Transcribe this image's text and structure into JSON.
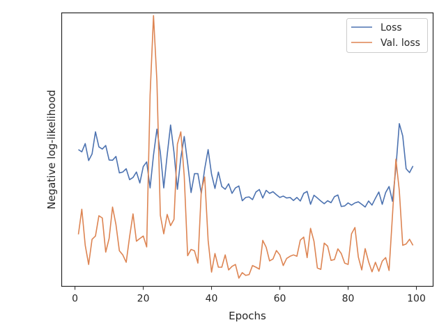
{
  "chart_data": {
    "type": "line",
    "xlabel": "Epochs",
    "ylabel": "Negative log-likelihood",
    "xlim": [
      -3.9,
      104.9
    ],
    "ylim": [
      0.0,
      1.0
    ],
    "x_ticks": [
      0,
      20,
      40,
      60,
      80,
      100
    ],
    "y_ticks_shown": false,
    "grid": false,
    "legend_position": "top-right",
    "series": [
      {
        "name": "Loss",
        "color": "#4c72b0",
        "x": [
          1,
          2,
          3,
          4,
          5,
          6,
          7,
          8,
          9,
          10,
          11,
          12,
          13,
          14,
          15,
          16,
          17,
          18,
          19,
          20,
          21,
          22,
          23,
          24,
          25,
          26,
          27,
          28,
          29,
          30,
          31,
          32,
          33,
          34,
          35,
          36,
          37,
          38,
          39,
          40,
          41,
          42,
          43,
          44,
          45,
          46,
          47,
          48,
          49,
          50,
          51,
          52,
          53,
          54,
          55,
          56,
          57,
          58,
          59,
          60,
          61,
          62,
          63,
          64,
          65,
          66,
          67,
          68,
          69,
          70,
          71,
          72,
          73,
          74,
          75,
          76,
          77,
          78,
          79,
          80,
          81,
          82,
          83,
          84,
          85,
          86,
          87,
          88,
          89,
          90,
          91,
          92,
          93,
          94,
          95,
          96,
          97,
          98,
          99
        ],
        "values": [
          0.5,
          0.492,
          0.522,
          0.46,
          0.484,
          0.565,
          0.51,
          0.502,
          0.515,
          0.462,
          0.461,
          0.475,
          0.415,
          0.418,
          0.43,
          0.39,
          0.398,
          0.418,
          0.378,
          0.438,
          0.455,
          0.36,
          0.48,
          0.575,
          0.49,
          0.36,
          0.48,
          0.59,
          0.49,
          0.355,
          0.47,
          0.548,
          0.45,
          0.343,
          0.412,
          0.412,
          0.34,
          0.43,
          0.5,
          0.41,
          0.358,
          0.418,
          0.365,
          0.355,
          0.375,
          0.34,
          0.36,
          0.367,
          0.313,
          0.325,
          0.327,
          0.317,
          0.345,
          0.354,
          0.323,
          0.351,
          0.34,
          0.346,
          0.335,
          0.325,
          0.33,
          0.323,
          0.325,
          0.314,
          0.325,
          0.312,
          0.34,
          0.347,
          0.3,
          0.333,
          0.323,
          0.312,
          0.302,
          0.313,
          0.306,
          0.328,
          0.334,
          0.292,
          0.294,
          0.305,
          0.297,
          0.305,
          0.309,
          0.3,
          0.29,
          0.312,
          0.297,
          0.322,
          0.345,
          0.3,
          0.343,
          0.365,
          0.311,
          0.433,
          0.595,
          0.55,
          0.43,
          0.416,
          0.44
        ]
      },
      {
        "name": "Val. loss",
        "color": "#dd8452",
        "x": [
          1,
          2,
          3,
          4,
          5,
          6,
          7,
          8,
          9,
          10,
          11,
          12,
          13,
          14,
          15,
          16,
          17,
          18,
          19,
          20,
          21,
          22,
          23,
          24,
          25,
          26,
          27,
          28,
          29,
          30,
          31,
          32,
          33,
          34,
          35,
          36,
          37,
          38,
          39,
          40,
          41,
          42,
          43,
          44,
          45,
          46,
          47,
          48,
          49,
          50,
          51,
          52,
          53,
          54,
          55,
          56,
          57,
          58,
          59,
          60,
          61,
          62,
          63,
          64,
          65,
          66,
          67,
          68,
          69,
          70,
          71,
          72,
          73,
          74,
          75,
          76,
          77,
          78,
          79,
          80,
          81,
          82,
          83,
          84,
          85,
          86,
          87,
          88,
          89,
          90,
          91,
          92,
          93,
          94,
          95,
          96,
          97,
          98,
          99
        ],
        "values": [
          0.19,
          0.282,
          0.15,
          0.08,
          0.172,
          0.184,
          0.258,
          0.25,
          0.125,
          0.175,
          0.29,
          0.226,
          0.13,
          0.115,
          0.088,
          0.182,
          0.265,
          0.165,
          0.175,
          0.184,
          0.144,
          0.7,
          0.99,
          0.75,
          0.26,
          0.192,
          0.263,
          0.222,
          0.245,
          0.52,
          0.565,
          0.403,
          0.112,
          0.135,
          0.13,
          0.085,
          0.35,
          0.4,
          0.168,
          0.052,
          0.12,
          0.07,
          0.07,
          0.115,
          0.06,
          0.073,
          0.08,
          0.03,
          0.05,
          0.04,
          0.043,
          0.076,
          0.07,
          0.063,
          0.168,
          0.143,
          0.093,
          0.1,
          0.131,
          0.115,
          0.076,
          0.102,
          0.11,
          0.115,
          0.11,
          0.169,
          0.18,
          0.105,
          0.212,
          0.165,
          0.067,
          0.062,
          0.158,
          0.147,
          0.095,
          0.098,
          0.137,
          0.12,
          0.085,
          0.08,
          0.192,
          0.215,
          0.107,
          0.06,
          0.138,
          0.09,
          0.053,
          0.088,
          0.055,
          0.092,
          0.105,
          0.058,
          0.26,
          0.465,
          0.35,
          0.15,
          0.155,
          0.172,
          0.15
        ]
      }
    ]
  }
}
